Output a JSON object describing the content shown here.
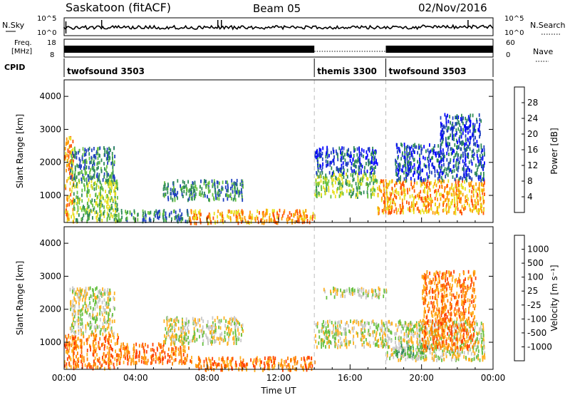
{
  "header": {
    "station": "Saskatoon (fitACF)",
    "beam": "Beam 05",
    "date": "02/Nov/2016"
  },
  "strip": {
    "nsky_label": "N.Sky",
    "nsky_ticks": [
      "10^5",
      "10^0"
    ],
    "nsearch_label": "N.Search",
    "nsearch_ticks": [
      "10^5",
      "10^0"
    ],
    "freq_label_1": "Freq.",
    "freq_label_2": "[MHz]",
    "freq_ticks": [
      "18",
      "8"
    ],
    "nave_label": "Nave",
    "nave_ticks": [
      "60",
      "0"
    ],
    "cpid_label": "CPID",
    "programs": [
      {
        "name": "twofsound 3503",
        "start": 0,
        "end": 14
      },
      {
        "name": "themis 3300",
        "start": 14,
        "end": 18
      },
      {
        "name": "twofsound 3503",
        "start": 18,
        "end": 24
      }
    ]
  },
  "chart_data": [
    {
      "type": "heatmap",
      "panel": "power",
      "ylabel": "Slant Range [km]",
      "xlabel": "Time UT",
      "xlim": [
        0,
        24
      ],
      "ylim": [
        180,
        4500
      ],
      "x_ticks": [
        "00:00",
        "04:00",
        "08:00",
        "12:00",
        "16:00",
        "20:00",
        "00:00"
      ],
      "y_ticks": [
        1000,
        2000,
        3000,
        4000
      ],
      "colorbar": {
        "label": "Power [dB]",
        "ticks": [
          "28",
          "24",
          "20",
          "16",
          "12",
          "8",
          "4"
        ],
        "colors": [
          "#0000ff",
          "#2040c0",
          "#2e8b57",
          "#66c040",
          "#e8e020",
          "#ff9a00",
          "#ff5000",
          "#ff0000"
        ]
      },
      "echo_regions": [
        {
          "t0": 0.0,
          "t1": 0.5,
          "r0": 250,
          "r1": 2800,
          "level": 5
        },
        {
          "t0": 0.5,
          "t1": 3.0,
          "r0": 250,
          "r1": 1500,
          "level": 3
        },
        {
          "t0": 0.3,
          "t1": 2.8,
          "r0": 1500,
          "r1": 2500,
          "level": 2
        },
        {
          "t0": 3.0,
          "t1": 7.0,
          "r0": 250,
          "r1": 600,
          "level": 2
        },
        {
          "t0": 5.5,
          "t1": 10.0,
          "r0": 900,
          "r1": 1500,
          "level": 2
        },
        {
          "t0": 7.0,
          "t1": 14.0,
          "r0": 200,
          "r1": 600,
          "level": 5
        },
        {
          "t0": 14.0,
          "t1": 17.5,
          "r0": 1000,
          "r1": 1700,
          "level": 3
        },
        {
          "t0": 14.0,
          "t1": 17.5,
          "r0": 1700,
          "r1": 2500,
          "level": 1
        },
        {
          "t0": 17.5,
          "t1": 23.5,
          "r0": 500,
          "r1": 1500,
          "level": 5
        },
        {
          "t0": 18.5,
          "t1": 23.5,
          "r0": 1500,
          "r1": 2600,
          "level": 1
        },
        {
          "t0": 21.0,
          "t1": 23.3,
          "r0": 2600,
          "r1": 3500,
          "level": 1
        }
      ]
    },
    {
      "type": "heatmap",
      "panel": "velocity",
      "ylabel": "Slant Range [km]",
      "xlabel": "Time UT",
      "xlim": [
        0,
        24
      ],
      "ylim": [
        180,
        4500
      ],
      "x_ticks": [
        "00:00",
        "04:00",
        "08:00",
        "12:00",
        "16:00",
        "20:00",
        "00:00"
      ],
      "y_ticks": [
        1000,
        2000,
        3000,
        4000
      ],
      "colorbar": {
        "label": "Velocity [m s⁻¹]",
        "ticks": [
          "1000",
          "500",
          "100",
          "25",
          "-25",
          "-100",
          "-500",
          "-1000"
        ],
        "colors": [
          "#1030c0",
          "#3060a0",
          "#2e8b57",
          "#66c040",
          "#c8c8c8",
          "#ffb020",
          "#ff8000",
          "#ff4000",
          "#ff0000"
        ]
      },
      "echo_regions": [
        {
          "t0": 0.0,
          "t1": 3.0,
          "r0": 250,
          "r1": 1300,
          "level": 6
        },
        {
          "t0": 0.3,
          "t1": 2.8,
          "r0": 1300,
          "r1": 2700,
          "level": 4
        },
        {
          "t0": 3.0,
          "t1": 7.0,
          "r0": 400,
          "r1": 1000,
          "level": 6
        },
        {
          "t0": 5.5,
          "t1": 10.0,
          "r0": 1000,
          "r1": 1800,
          "level": 4
        },
        {
          "t0": 7.0,
          "t1": 14.0,
          "r0": 200,
          "r1": 600,
          "level": 6
        },
        {
          "t0": 14.0,
          "t1": 18.0,
          "r0": 900,
          "r1": 1700,
          "level": 4
        },
        {
          "t0": 14.5,
          "t1": 18.0,
          "r0": 2400,
          "r1": 2700,
          "level": 4
        },
        {
          "t0": 18.0,
          "t1": 23.5,
          "r0": 500,
          "r1": 1700,
          "level": 4
        },
        {
          "t0": 18.5,
          "t1": 20.5,
          "r0": 600,
          "r1": 1000,
          "level": 3
        },
        {
          "t0": 20.0,
          "t1": 23.0,
          "r0": 800,
          "r1": 3200,
          "level": 6
        }
      ]
    }
  ]
}
